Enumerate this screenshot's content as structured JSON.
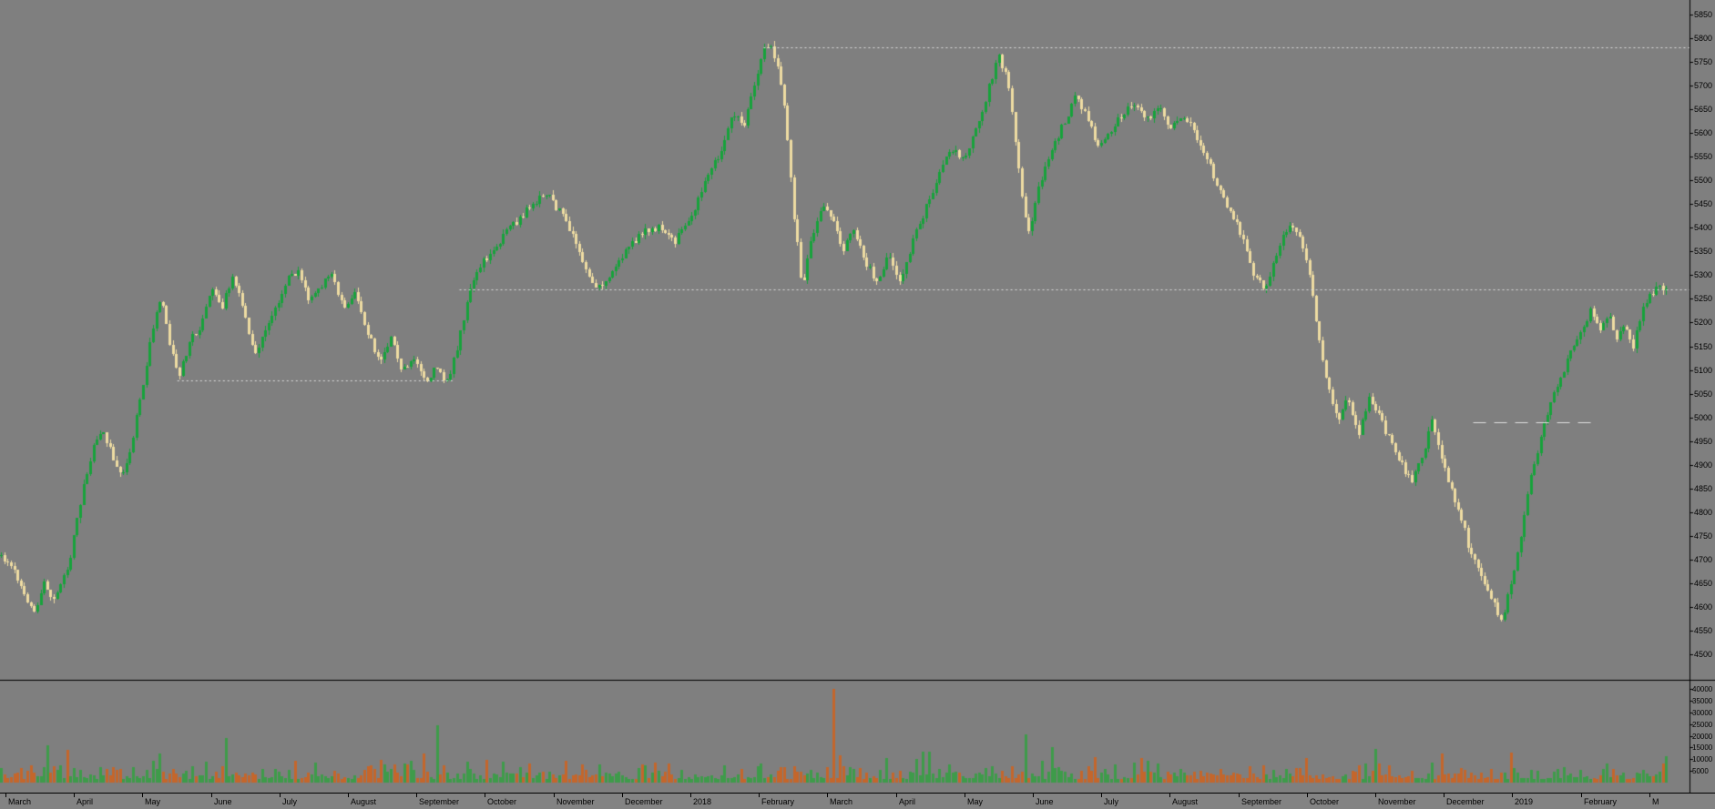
{
  "colors": {
    "background": "#7f7f7f",
    "candle_up": "#17a23b",
    "candle_down": "#eedca2",
    "volume_up": "#3e9b4a",
    "volume_down": "#c4662b",
    "level_line": "#dfdfdf",
    "separator": "#000000",
    "axis_text": "#000000",
    "time_strip": "#838383"
  },
  "render_seed": 11,
  "chart_data": {
    "type": "candlestick",
    "timeframe": "daily",
    "legend": [],
    "grid": "off",
    "candle_count": 505,
    "price_range": {
      "max": 5880,
      "min": 4447
    },
    "volume_range": {
      "max": 43500,
      "min": 0
    },
    "price_ticks": [
      5850,
      5800,
      5750,
      5700,
      5650,
      5600,
      5550,
      5500,
      5450,
      5400,
      5350,
      5300,
      5250,
      5200,
      5150,
      5100,
      5050,
      5000,
      4950,
      4900,
      4850,
      4800,
      4750,
      4700,
      4650,
      4600,
      4550,
      4500
    ],
    "volume_ticks": [
      40000,
      35000,
      30000,
      25000,
      20000,
      15000,
      10000,
      5000
    ],
    "x_axis_labels": [
      "March",
      "April",
      "May",
      "June",
      "July",
      "August",
      "September",
      "October",
      "November",
      "December",
      "2018",
      "February",
      "March",
      "April",
      "May",
      "June",
      "July",
      "August",
      "September",
      "October",
      "November",
      "December",
      "2019",
      "February",
      "M"
    ],
    "support_resistance_levels": [
      {
        "price": 5780,
        "from": 0.452,
        "to": 1.0,
        "style": "dotted"
      },
      {
        "price": 5270,
        "from": 0.272,
        "to": 1.0,
        "style": "dotted"
      },
      {
        "price": 5078,
        "from": 0.105,
        "to": 0.268,
        "style": "dotted"
      },
      {
        "price": 4990,
        "from": 0.872,
        "to": 0.945,
        "style": "dashed"
      }
    ],
    "price_path": [
      [
        0.0,
        4710
      ],
      [
        0.008,
        4680
      ],
      [
        0.014,
        4620
      ],
      [
        0.02,
        4590
      ],
      [
        0.026,
        4650
      ],
      [
        0.032,
        4615
      ],
      [
        0.04,
        4680
      ],
      [
        0.048,
        4830
      ],
      [
        0.055,
        4930
      ],
      [
        0.06,
        4975
      ],
      [
        0.066,
        4930
      ],
      [
        0.072,
        4870
      ],
      [
        0.078,
        4940
      ],
      [
        0.085,
        5060
      ],
      [
        0.09,
        5170
      ],
      [
        0.096,
        5255
      ],
      [
        0.101,
        5160
      ],
      [
        0.107,
        5085
      ],
      [
        0.113,
        5160
      ],
      [
        0.119,
        5190
      ],
      [
        0.126,
        5270
      ],
      [
        0.133,
        5235
      ],
      [
        0.139,
        5300
      ],
      [
        0.146,
        5230
      ],
      [
        0.152,
        5130
      ],
      [
        0.159,
        5190
      ],
      [
        0.166,
        5240
      ],
      [
        0.172,
        5290
      ],
      [
        0.179,
        5310
      ],
      [
        0.185,
        5250
      ],
      [
        0.192,
        5280
      ],
      [
        0.199,
        5300
      ],
      [
        0.206,
        5230
      ],
      [
        0.213,
        5260
      ],
      [
        0.22,
        5180
      ],
      [
        0.227,
        5120
      ],
      [
        0.234,
        5165
      ],
      [
        0.241,
        5100
      ],
      [
        0.248,
        5125
      ],
      [
        0.255,
        5070
      ],
      [
        0.261,
        5110
      ],
      [
        0.267,
        5065
      ],
      [
        0.274,
        5150
      ],
      [
        0.281,
        5260
      ],
      [
        0.288,
        5320
      ],
      [
        0.296,
        5355
      ],
      [
        0.304,
        5395
      ],
      [
        0.312,
        5420
      ],
      [
        0.32,
        5455
      ],
      [
        0.328,
        5470
      ],
      [
        0.336,
        5430
      ],
      [
        0.344,
        5385
      ],
      [
        0.351,
        5310
      ],
      [
        0.358,
        5270
      ],
      [
        0.365,
        5300
      ],
      [
        0.372,
        5335
      ],
      [
        0.38,
        5370
      ],
      [
        0.388,
        5395
      ],
      [
        0.396,
        5405
      ],
      [
        0.404,
        5370
      ],
      [
        0.411,
        5400
      ],
      [
        0.419,
        5460
      ],
      [
        0.426,
        5520
      ],
      [
        0.433,
        5570
      ],
      [
        0.44,
        5640
      ],
      [
        0.446,
        5615
      ],
      [
        0.453,
        5700
      ],
      [
        0.459,
        5795
      ],
      [
        0.465,
        5760
      ],
      [
        0.471,
        5640
      ],
      [
        0.476,
        5430
      ],
      [
        0.481,
        5275
      ],
      [
        0.487,
        5380
      ],
      [
        0.493,
        5450
      ],
      [
        0.499,
        5415
      ],
      [
        0.506,
        5350
      ],
      [
        0.512,
        5400
      ],
      [
        0.519,
        5330
      ],
      [
        0.526,
        5285
      ],
      [
        0.533,
        5340
      ],
      [
        0.54,
        5290
      ],
      [
        0.548,
        5375
      ],
      [
        0.556,
        5450
      ],
      [
        0.564,
        5520
      ],
      [
        0.571,
        5565
      ],
      [
        0.578,
        5540
      ],
      [
        0.585,
        5605
      ],
      [
        0.592,
        5680
      ],
      [
        0.599,
        5765
      ],
      [
        0.605,
        5705
      ],
      [
        0.611,
        5520
      ],
      [
        0.617,
        5385
      ],
      [
        0.623,
        5480
      ],
      [
        0.63,
        5555
      ],
      [
        0.638,
        5620
      ],
      [
        0.645,
        5675
      ],
      [
        0.652,
        5640
      ],
      [
        0.659,
        5565
      ],
      [
        0.666,
        5605
      ],
      [
        0.674,
        5640
      ],
      [
        0.681,
        5665
      ],
      [
        0.688,
        5625
      ],
      [
        0.695,
        5655
      ],
      [
        0.702,
        5610
      ],
      [
        0.71,
        5640
      ],
      [
        0.717,
        5600
      ],
      [
        0.724,
        5545
      ],
      [
        0.731,
        5485
      ],
      [
        0.738,
        5435
      ],
      [
        0.745,
        5385
      ],
      [
        0.752,
        5305
      ],
      [
        0.759,
        5270
      ],
      [
        0.766,
        5345
      ],
      [
        0.773,
        5405
      ],
      [
        0.78,
        5375
      ],
      [
        0.786,
        5295
      ],
      [
        0.791,
        5175
      ],
      [
        0.797,
        5060
      ],
      [
        0.803,
        4985
      ],
      [
        0.809,
        5045
      ],
      [
        0.815,
        4960
      ],
      [
        0.822,
        5045
      ],
      [
        0.828,
        5000
      ],
      [
        0.834,
        4950
      ],
      [
        0.841,
        4900
      ],
      [
        0.847,
        4862
      ],
      [
        0.853,
        4915
      ],
      [
        0.859,
        4990
      ],
      [
        0.865,
        4920
      ],
      [
        0.871,
        4845
      ],
      [
        0.877,
        4785
      ],
      [
        0.883,
        4705
      ],
      [
        0.889,
        4670
      ],
      [
        0.895,
        4620
      ],
      [
        0.901,
        4572
      ],
      [
        0.907,
        4650
      ],
      [
        0.913,
        4760
      ],
      [
        0.919,
        4880
      ],
      [
        0.925,
        4965
      ],
      [
        0.931,
        5040
      ],
      [
        0.937,
        5090
      ],
      [
        0.943,
        5140
      ],
      [
        0.949,
        5180
      ],
      [
        0.955,
        5230
      ],
      [
        0.96,
        5180
      ],
      [
        0.965,
        5220
      ],
      [
        0.97,
        5160
      ],
      [
        0.975,
        5205
      ],
      [
        0.98,
        5150
      ],
      [
        0.986,
        5230
      ],
      [
        0.993,
        5270
      ]
    ],
    "volume_profile": {
      "typical_min": 1500,
      "typical_max": 11000,
      "spikes": [
        {
          "x": 0.027,
          "value": 16000,
          "direction": "up"
        },
        {
          "x": 0.04,
          "value": 14000,
          "direction": "down"
        },
        {
          "x": 0.135,
          "value": 19000,
          "direction": "up"
        },
        {
          "x": 0.262,
          "value": 24500,
          "direction": "up"
        },
        {
          "x": 0.5,
          "value": 40000,
          "direction": "down"
        },
        {
          "x": 0.615,
          "value": 20500,
          "direction": "up"
        },
        {
          "x": 0.63,
          "value": 15000,
          "direction": "up"
        },
        {
          "x": 0.825,
          "value": 14500,
          "direction": "up"
        },
        {
          "x": 0.906,
          "value": 13000,
          "direction": "down"
        }
      ]
    }
  }
}
